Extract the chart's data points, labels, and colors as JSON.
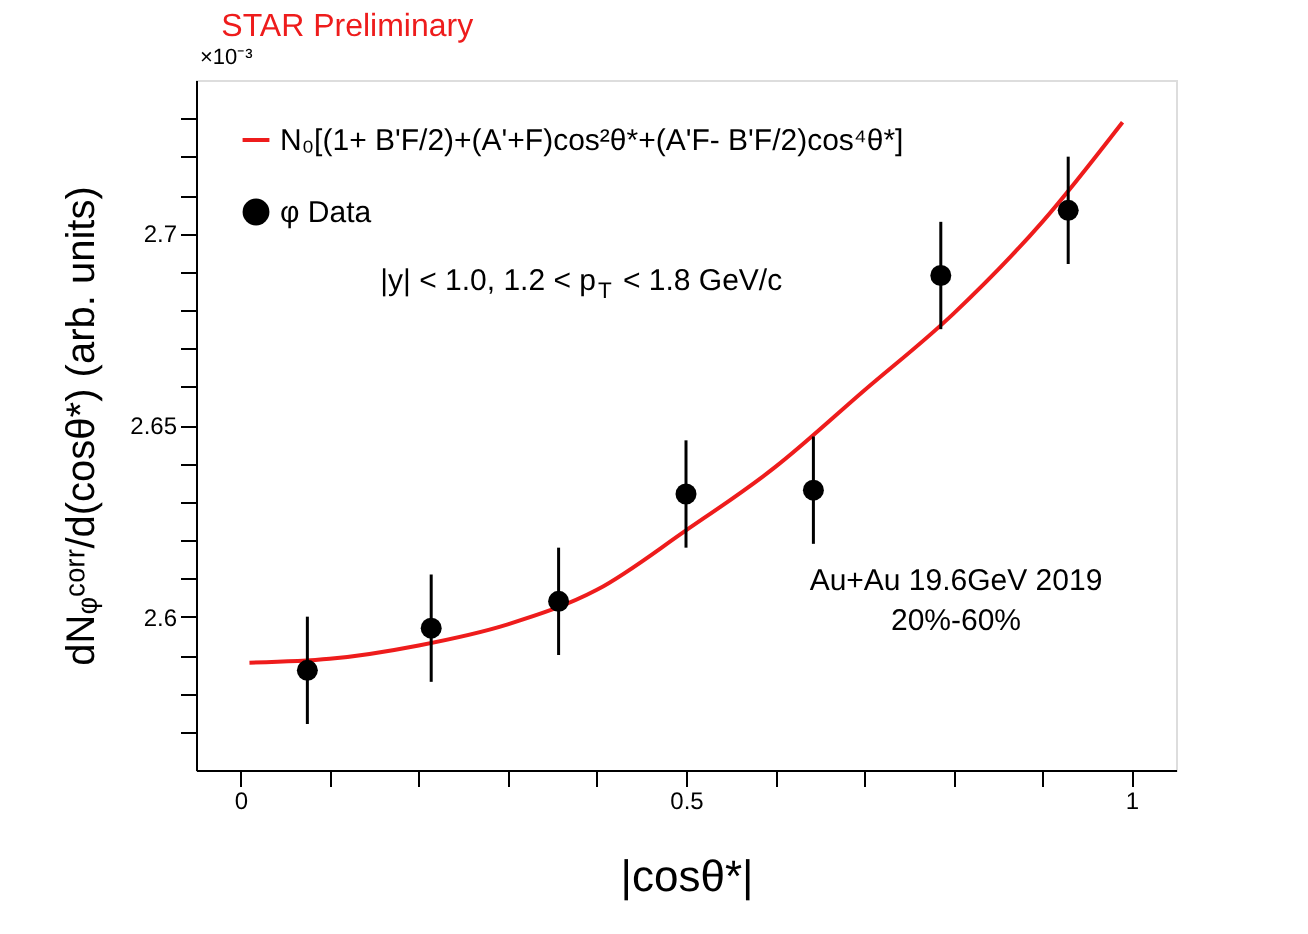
{
  "chart_data": {
    "type": "scatter",
    "title": "STAR Preliminary",
    "xlabel": "|cosθ*|",
    "ylabel": "dNᵩᶜᵒʳʳ/d(cosθ*) (arb. units)",
    "annotations": [
      "×10⁻³",
      "|y| < 1.0, 1.2 < p$_{T}$ < 1.8 GeV/c",
      "Au+Au 19.6GeV 2019",
      "20%-60%"
    ],
    "series": [
      {
        "name": "N₀[(1+ B'F/2)+(A'+F)cos²θ*+(A'F- B'F/2)cos⁴θ*]",
        "type": "line",
        "marker": "none",
        "line_style": "solid",
        "color": "#ee1c1c",
        "x": [
          0.01,
          0.1,
          0.2,
          0.3,
          0.4,
          0.5,
          0.6,
          0.7,
          0.8,
          0.9,
          0.99
        ],
        "values": [
          2.588,
          2.589,
          2.5925,
          2.598,
          2.607,
          2.6225,
          2.639,
          2.659,
          2.679,
          2.703,
          2.729
        ]
      },
      {
        "name": "φ Data",
        "marker": "circle",
        "color": "#000000",
        "x": [
          0.075,
          0.214,
          0.357,
          0.5,
          0.643,
          0.786,
          0.929
        ],
        "values": [
          2.586,
          2.597,
          2.604,
          2.632,
          2.633,
          2.689,
          2.706
        ],
        "errors": [
          0.014,
          0.014,
          0.014,
          0.014,
          0.014,
          0.014,
          0.014
        ]
      }
    ],
    "xlim": [
      -0.05,
      1.05
    ],
    "ylim": [
      2.56,
      2.74
    ],
    "xticks": [
      0,
      {
        "value": 0.1,
        "label": null
      },
      {
        "value": 0.2,
        "label": null
      },
      {
        "value": 0.3,
        "label": null
      },
      {
        "value": 0.4,
        "label": null
      },
      0.5,
      {
        "value": 0.6,
        "label": null
      },
      {
        "value": 0.7,
        "label": null
      },
      {
        "value": 0.8,
        "label": null
      },
      {
        "value": 0.9,
        "label": null
      },
      1
    ],
    "yticks": [
      {
        "value": 2.57,
        "label": null
      },
      {
        "value": 2.58,
        "label": null
      },
      {
        "value": 2.59,
        "label": null
      },
      2.6,
      {
        "value": 2.61,
        "label": null
      },
      {
        "value": 2.62,
        "label": null
      },
      {
        "value": 2.63,
        "label": null
      },
      {
        "value": 2.64,
        "label": null
      },
      2.65,
      {
        "value": 2.66,
        "label": null
      },
      {
        "value": 2.67,
        "label": null
      },
      {
        "value": 2.68,
        "label": null
      },
      {
        "value": 2.69,
        "label": null
      },
      2.7,
      {
        "value": 2.71,
        "label": null
      },
      {
        "value": 2.72,
        "label": null
      },
      {
        "value": 2.73,
        "label": null
      }
    ],
    "legend": "top left",
    "grid": false
  }
}
